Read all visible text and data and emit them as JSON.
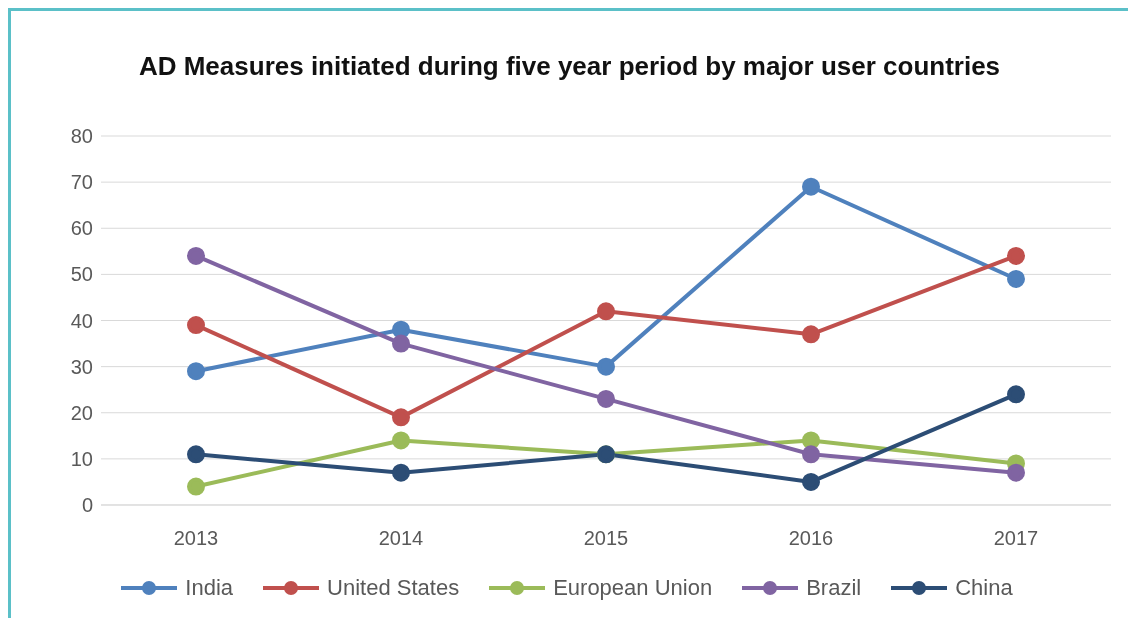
{
  "chart_data": {
    "type": "line",
    "title": "AD Measures initiated during five year period by major user countries",
    "categories": [
      "2013",
      "2014",
      "2015",
      "2016",
      "2017"
    ],
    "series": [
      {
        "name": "India",
        "color": "#4f81bd",
        "values": [
          29,
          38,
          30,
          69,
          49
        ]
      },
      {
        "name": "United States",
        "color": "#c0504d",
        "values": [
          39,
          19,
          42,
          37,
          54
        ]
      },
      {
        "name": "European Union",
        "color": "#9bbb59",
        "values": [
          4,
          14,
          11,
          14,
          9
        ]
      },
      {
        "name": "Brazil",
        "color": "#8064a2",
        "values": [
          54,
          35,
          23,
          11,
          7
        ]
      },
      {
        "name": "China",
        "color": "#2c4d75",
        "values": [
          11,
          7,
          11,
          5,
          24
        ]
      }
    ],
    "ylim": [
      0,
      80
    ],
    "yticks": [
      0,
      10,
      20,
      30,
      40,
      50,
      60,
      70,
      80
    ],
    "grid": "y",
    "legend": "bottom",
    "marker": "circle",
    "line_style": "solid"
  }
}
